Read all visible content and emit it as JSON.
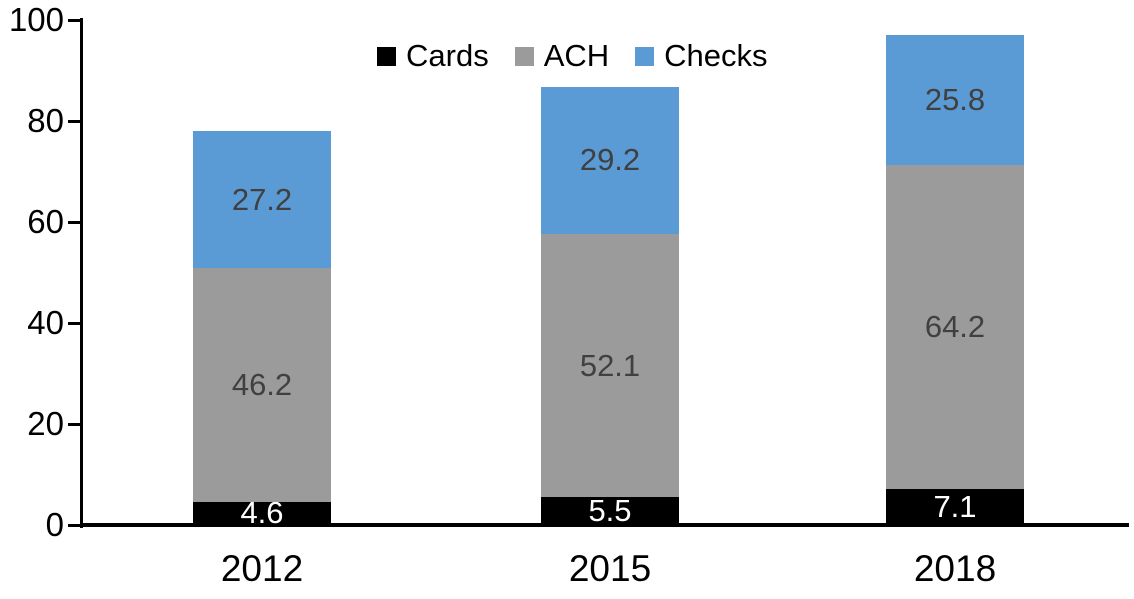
{
  "chart_data": {
    "type": "bar",
    "stacked": true,
    "title": "",
    "categories": [
      "2012",
      "2015",
      "2018"
    ],
    "series": [
      {
        "name": "Cards",
        "color": "#000000",
        "label_color": "#ffffff",
        "values": [
          4.6,
          5.5,
          7.1
        ]
      },
      {
        "name": "ACH",
        "color": "#9b9b9b",
        "label_color": "#404040",
        "values": [
          46.2,
          52.1,
          64.2
        ]
      },
      {
        "name": "Checks",
        "color": "#5b9bd5",
        "label_color": "#404040",
        "values": [
          27.2,
          29.2,
          25.8
        ]
      }
    ],
    "totals": [
      78.0,
      86.8,
      97.1
    ],
    "xlabel": "",
    "ylabel": "",
    "y_axis": {
      "min": 0,
      "max": 100,
      "tick_values": [
        0,
        20,
        40,
        60,
        80,
        100
      ],
      "tick_labels": [
        "0",
        "20",
        "40",
        "60",
        "80",
        "100"
      ]
    },
    "grid": false,
    "legend_position": "top-center",
    "legend_entries": [
      "Cards",
      "ACH",
      "Checks"
    ],
    "axis_color": "#000000",
    "background_color": "#ffffff"
  }
}
